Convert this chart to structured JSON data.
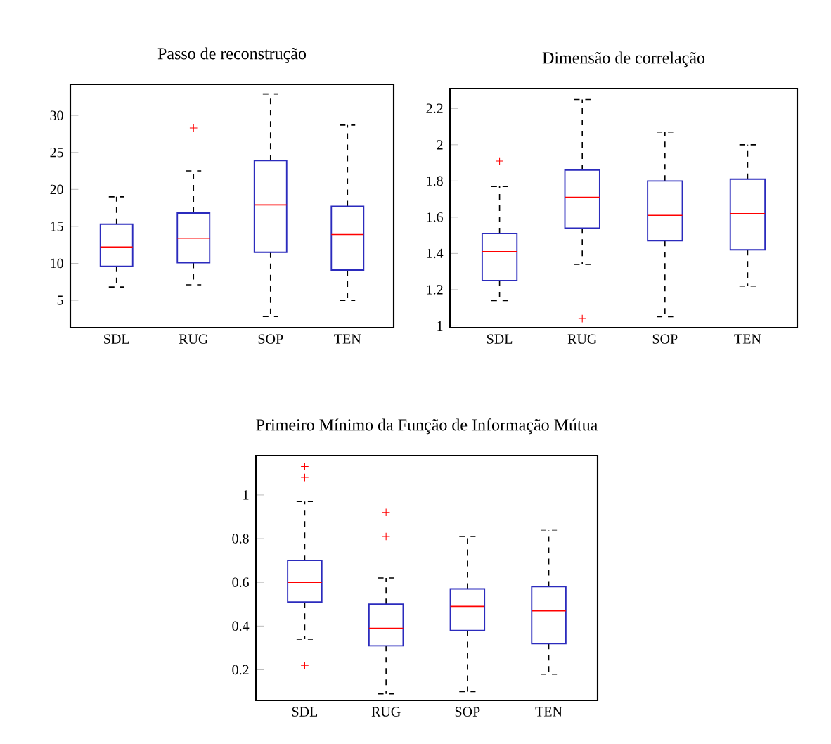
{
  "chart_data": [
    {
      "type": "box",
      "title": "Passo de reconstrução",
      "categories": [
        "SDL",
        "RUG",
        "SOP",
        "TEN"
      ],
      "color": "#2b2bbd",
      "ylim": [
        1.3,
        34.2
      ],
      "yticks": [
        5,
        10,
        15,
        20,
        25,
        30
      ],
      "grid": false,
      "boxes": [
        {
          "low": 6.8,
          "q1": 9.6,
          "median": 12.2,
          "q3": 15.3,
          "high": 19.0
        },
        {
          "low": 7.1,
          "q1": 10.1,
          "median": 13.4,
          "q3": 16.8,
          "high": 22.5,
          "outliers": [
            28.3
          ]
        },
        {
          "low": 2.8,
          "q1": 11.5,
          "median": 17.9,
          "q3": 23.9,
          "high": 32.9
        },
        {
          "low": 5.0,
          "q1": 9.1,
          "median": 13.9,
          "q3": 17.7,
          "high": 28.7
        }
      ]
    },
    {
      "type": "box",
      "title": "Dimensão de correlação",
      "categories": [
        "SDL",
        "RUG",
        "SOP",
        "TEN"
      ],
      "color": "#2b2bbd",
      "ylim": [
        0.99,
        2.31
      ],
      "yticks": [
        1,
        1.2,
        1.4,
        1.6,
        1.8,
        2,
        2.2
      ],
      "grid": false,
      "boxes": [
        {
          "low": 1.14,
          "q1": 1.25,
          "median": 1.41,
          "q3": 1.51,
          "high": 1.77,
          "outliers": [
            1.91
          ]
        },
        {
          "low": 1.34,
          "q1": 1.54,
          "median": 1.71,
          "q3": 1.86,
          "high": 2.25,
          "outliers": [
            1.04
          ]
        },
        {
          "low": 1.05,
          "q1": 1.47,
          "median": 1.61,
          "q3": 1.8,
          "high": 2.07
        },
        {
          "low": 1.22,
          "q1": 1.42,
          "median": 1.62,
          "q3": 1.81,
          "high": 2.0
        }
      ]
    },
    {
      "type": "box",
      "title": "Primeiro Mínimo da Função de Informação  Mútua",
      "categories": [
        "SDL",
        "RUG",
        "SOP",
        "TEN"
      ],
      "color": "#2b2bbd",
      "ylim": [
        0.06,
        1.18
      ],
      "yticks": [
        0.2,
        0.4,
        0.6,
        0.8,
        1
      ],
      "grid": false,
      "boxes": [
        {
          "low": 0.34,
          "q1": 0.51,
          "median": 0.6,
          "q3": 0.7,
          "high": 0.97,
          "outliers": [
            1.13,
            1.08,
            0.22
          ]
        },
        {
          "low": 0.09,
          "q1": 0.31,
          "median": 0.39,
          "q3": 0.5,
          "high": 0.62,
          "outliers": [
            0.92,
            0.81
          ]
        },
        {
          "low": 0.1,
          "q1": 0.38,
          "median": 0.49,
          "q3": 0.57,
          "high": 0.81
        },
        {
          "low": 0.18,
          "q1": 0.32,
          "median": 0.47,
          "q3": 0.58,
          "high": 0.84
        }
      ]
    }
  ]
}
